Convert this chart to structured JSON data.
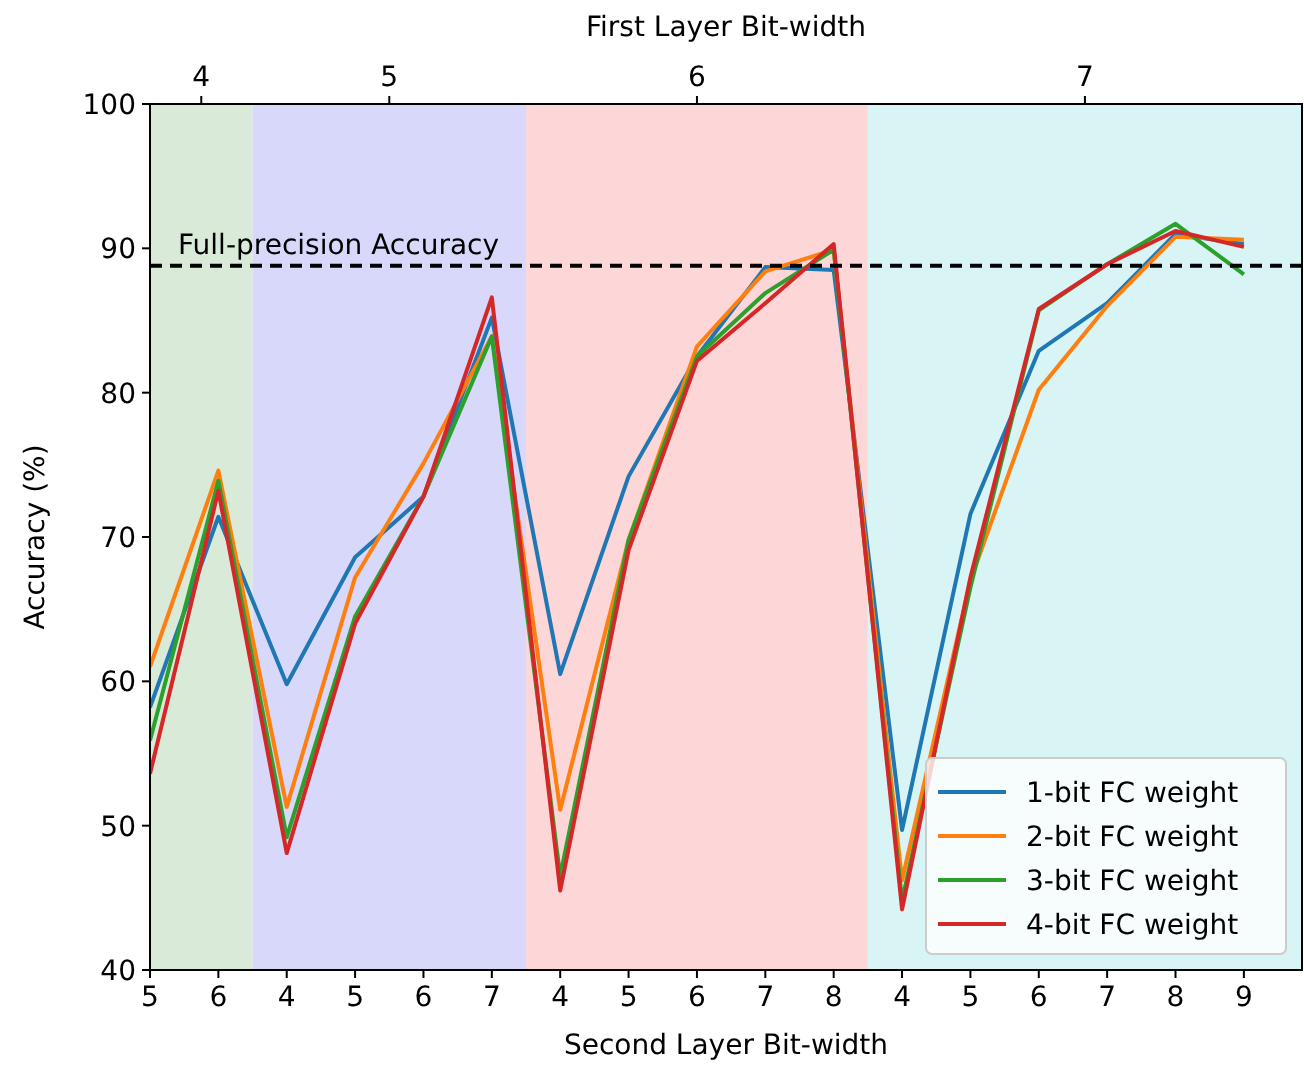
{
  "chart_data": {
    "type": "line",
    "xlabel": "Second Layer Bit-width",
    "ylabel": "Accuracy (%)",
    "x2label": "First Layer Bit-width",
    "categories": [
      "5",
      "6",
      "4",
      "5",
      "6",
      "7",
      "4",
      "5",
      "6",
      "7",
      "8",
      "4",
      "5",
      "6",
      "7",
      "8",
      "9"
    ],
    "ylim": [
      40,
      100
    ],
    "yticks": [
      40,
      50,
      60,
      70,
      80,
      90,
      100
    ],
    "series": [
      {
        "name": "1-bit FC weight",
        "color": "#1f77b4",
        "values": [
          58.2,
          71.4,
          59.8,
          68.6,
          72.8,
          85.2,
          60.5,
          74.2,
          82.5,
          88.7,
          88.5,
          49.7,
          71.6,
          82.9,
          86.2,
          91.0,
          90.3
        ]
      },
      {
        "name": "2-bit FC weight",
        "color": "#ff7f0e",
        "values": [
          61.0,
          74.6,
          51.3,
          67.2,
          75.1,
          83.9,
          51.1,
          69.8,
          83.2,
          88.4,
          89.9,
          46.2,
          67.0,
          80.2,
          86.0,
          90.8,
          90.6
        ]
      },
      {
        "name": "3-bit FC weight",
        "color": "#2ca02c",
        "values": [
          55.9,
          73.9,
          49.2,
          64.5,
          72.8,
          83.9,
          46.5,
          69.8,
          82.5,
          86.9,
          89.9,
          44.8,
          66.5,
          85.7,
          88.9,
          91.7,
          88.2
        ]
      },
      {
        "name": "4-bit FC weight",
        "color": "#d62728",
        "values": [
          53.6,
          73.2,
          48.1,
          64.0,
          72.8,
          86.6,
          45.5,
          69.1,
          82.2,
          86.2,
          90.3,
          44.2,
          67.2,
          85.8,
          88.9,
          91.2,
          90.1
        ]
      }
    ],
    "ref_lines": [
      {
        "axis": "y",
        "value": 88.8,
        "label": "Full-precision Accuracy",
        "color": "#000000",
        "line_style": "dashed"
      }
    ],
    "annotations": [
      "4",
      "5",
      "6",
      "7"
    ],
    "legend": "bottom right",
    "grid": false,
    "line_style": "solid",
    "marker": "none"
  }
}
